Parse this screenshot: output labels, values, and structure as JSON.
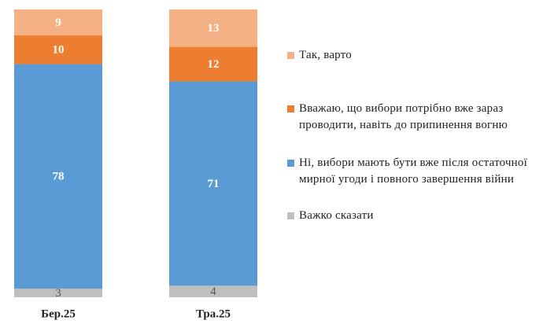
{
  "chart_data": {
    "type": "stacked-bar",
    "categories": [
      "Бер.25",
      "Тра.25"
    ],
    "series": [
      {
        "name": "Важко сказати",
        "color": "#bfbfbf",
        "values": [
          3,
          4
        ]
      },
      {
        "name": "Ні, вибори мають бути вже після остаточної мирної угоди і повного завершення війни",
        "color": "#5b9bd5",
        "values": [
          78,
          71
        ]
      },
      {
        "name": "Вважаю, що вибори потрібно вже зараз проводити, навіть до припинення вогню",
        "color": "#ed7d31",
        "values": [
          10,
          12
        ]
      },
      {
        "name": "Так, варто",
        "color": "#f4b183",
        "values": [
          9,
          13
        ]
      }
    ]
  }
}
